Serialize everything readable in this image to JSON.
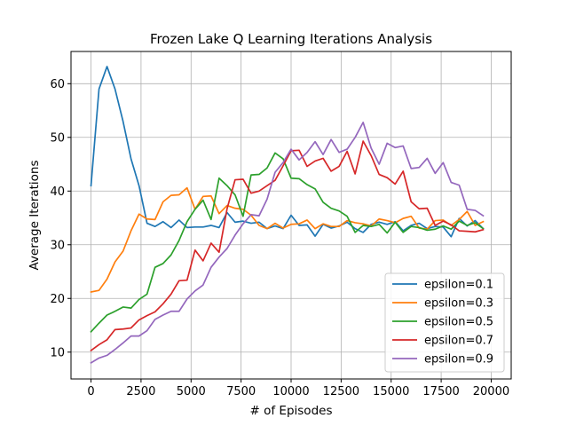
{
  "chart_data": {
    "type": "line",
    "title": "Frozen Lake Q Learning Iterations Analysis",
    "xlabel": "# of Episodes",
    "ylabel": "Average Iterations",
    "xlim": [
      -1000,
      21000
    ],
    "ylim": [
      5,
      66
    ],
    "xticks": [
      0,
      2500,
      5000,
      7500,
      10000,
      12500,
      15000,
      17500,
      20000
    ],
    "yticks": [
      10,
      20,
      30,
      40,
      50,
      60
    ],
    "grid": true,
    "legend_position": "lower-right",
    "x": [
      0,
      400,
      800,
      1200,
      1600,
      2000,
      2400,
      2800,
      3200,
      3600,
      4000,
      4400,
      4800,
      5200,
      5600,
      6000,
      6400,
      6800,
      7200,
      7600,
      8000,
      8400,
      8800,
      9200,
      9600,
      10000,
      10400,
      10800,
      11200,
      11600,
      12000,
      12400,
      12800,
      13200,
      13600,
      14000,
      14400,
      14800,
      15200,
      15600,
      16000,
      16400,
      16800,
      17200,
      17600,
      18000,
      18400,
      18800,
      19200,
      19600
    ],
    "series": [
      {
        "name": "epsilon=0.1",
        "color": "#1f77b4",
        "values": [
          41.0,
          59.0,
          63.2,
          59.0,
          53.0,
          46.0,
          41.0,
          34.0,
          33.4,
          34.3,
          33.2,
          34.6,
          33.2,
          33.3,
          33.3,
          33.6,
          33.2,
          36.0,
          34.2,
          34.4,
          34.0,
          34.2,
          33.0,
          33.5,
          33.0,
          35.5,
          33.6,
          33.7,
          31.6,
          33.8,
          33.1,
          33.5,
          34.2,
          33.0,
          32.3,
          33.8,
          34.2,
          33.8,
          34.3,
          32.6,
          33.6,
          34.0,
          33.0,
          33.4,
          33.3,
          31.5,
          34.9,
          33.5,
          34.5,
          33.0
        ]
      },
      {
        "name": "epsilon=0.3",
        "color": "#ff7f0e",
        "values": [
          21.2,
          21.5,
          23.6,
          26.8,
          28.8,
          32.6,
          35.7,
          34.8,
          34.7,
          38.0,
          39.2,
          39.3,
          40.6,
          36.6,
          39.0,
          39.1,
          35.8,
          37.3,
          36.8,
          36.6,
          35.5,
          33.6,
          33.0,
          34.0,
          33.1,
          33.8,
          33.9,
          34.6,
          33.0,
          33.9,
          33.4,
          33.4,
          34.5,
          34.1,
          33.9,
          33.5,
          34.8,
          34.5,
          34.1,
          34.9,
          35.3,
          33.1,
          32.9,
          34.5,
          34.6,
          33.6,
          34.7,
          36.2,
          33.6,
          34.3
        ]
      },
      {
        "name": "epsilon=0.5",
        "color": "#2ca02c",
        "values": [
          13.8,
          15.4,
          16.9,
          17.6,
          18.4,
          18.2,
          19.8,
          20.8,
          25.8,
          26.5,
          28.1,
          30.8,
          34.3,
          36.6,
          38.3,
          34.7,
          42.4,
          41.0,
          39.3,
          35.3,
          43.0,
          43.1,
          44.3,
          47.1,
          46.0,
          42.4,
          42.3,
          41.2,
          40.4,
          37.9,
          36.8,
          36.3,
          35.3,
          32.3,
          33.6,
          33.4,
          33.8,
          32.2,
          34.2,
          32.3,
          33.4,
          33.2,
          32.7,
          32.9,
          33.5,
          32.9,
          34.4,
          33.6,
          34.1,
          33.0
        ]
      },
      {
        "name": "epsilon=0.7",
        "color": "#d62728",
        "values": [
          10.3,
          11.4,
          12.3,
          14.2,
          14.3,
          14.5,
          16.0,
          16.8,
          17.5,
          19.0,
          20.8,
          23.3,
          23.4,
          29.0,
          27.0,
          30.3,
          28.6,
          36.7,
          42.1,
          42.2,
          39.6,
          40.0,
          41.0,
          42.0,
          44.7,
          47.5,
          47.6,
          44.6,
          45.6,
          46.1,
          43.7,
          44.6,
          47.4,
          43.2,
          49.3,
          46.6,
          43.1,
          42.5,
          41.3,
          43.7,
          38.0,
          36.7,
          36.8,
          33.6,
          34.4,
          33.7,
          32.6,
          32.5,
          32.4,
          32.8
        ]
      },
      {
        "name": "epsilon=0.9",
        "color": "#9467bd",
        "values": [
          8.0,
          8.9,
          9.4,
          10.5,
          11.7,
          13.0,
          13.0,
          14.0,
          16.1,
          16.9,
          17.6,
          17.6,
          19.9,
          21.4,
          22.5,
          25.8,
          27.7,
          29.3,
          31.8,
          33.9,
          35.6,
          35.4,
          38.5,
          43.5,
          45.3,
          47.8,
          45.8,
          47.2,
          49.2,
          46.8,
          49.6,
          47.2,
          47.8,
          50.0,
          52.8,
          48.0,
          45.0,
          48.9,
          48.1,
          48.4,
          44.2,
          44.4,
          46.1,
          43.3,
          45.3,
          41.6,
          41.1,
          36.6,
          36.4,
          35.4
        ]
      }
    ]
  }
}
